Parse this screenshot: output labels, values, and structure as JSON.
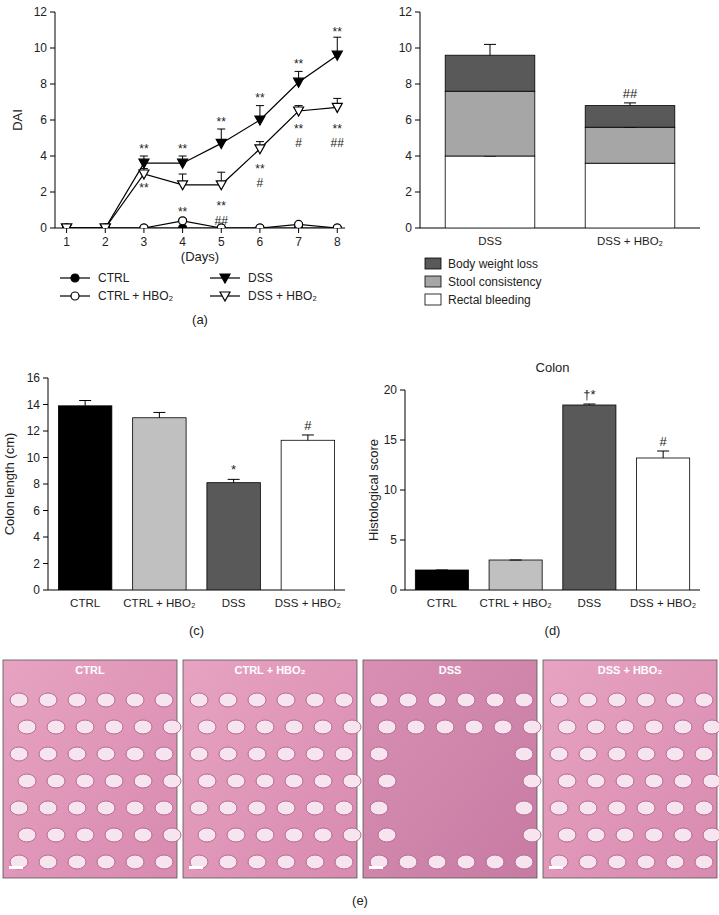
{
  "chart_data": [
    {
      "type": "line",
      "panel_label": "(a)",
      "x_label": "(Days)",
      "y_label": "DAI",
      "x": [
        1,
        2,
        3,
        4,
        5,
        6,
        7,
        8
      ],
      "xlim": [
        0.7,
        8.2
      ],
      "xticks": [
        1,
        2,
        3,
        4,
        5,
        6,
        7,
        8
      ],
      "ylim": [
        0,
        12
      ],
      "yticks": [
        0,
        2,
        4,
        6,
        8,
        10,
        12
      ],
      "legend": "bottom",
      "series": [
        {
          "name": "CTRL",
          "color": "#000000",
          "marker": "circle",
          "values": [
            0,
            0,
            0,
            0,
            0,
            0,
            0,
            0
          ],
          "errors": [
            0,
            0,
            0,
            0,
            0,
            0,
            0,
            0
          ]
        },
        {
          "name": "CTRL + HBO₂",
          "color": "#000000",
          "marker": "circle-open",
          "values": [
            0,
            0,
            0,
            0.4,
            0,
            0,
            0.2,
            0
          ],
          "errors": [
            0,
            0,
            0,
            0.1,
            0,
            0,
            0.1,
            0
          ]
        },
        {
          "name": "DSS",
          "color": "#000000",
          "marker": "triangle-down",
          "values": [
            0,
            0,
            3.6,
            3.6,
            4.7,
            6.0,
            8.1,
            9.6
          ],
          "errors": [
            0,
            0,
            0.4,
            0.4,
            0.8,
            0.8,
            0.6,
            1.0
          ]
        },
        {
          "name": "DSS + HBO₂",
          "color": "#000000",
          "marker": "triangle-down-open",
          "values": [
            0,
            0,
            3.0,
            2.4,
            2.4,
            4.4,
            6.5,
            6.7
          ],
          "errors": [
            0,
            0,
            0.3,
            0.6,
            0.7,
            0.4,
            0.3,
            0.5
          ]
        }
      ],
      "annotations": [
        {
          "x": 3,
          "y": 4.4,
          "text": "**"
        },
        {
          "x": 3,
          "y": 2.2,
          "text": "**"
        },
        {
          "x": 4,
          "y": 4.4,
          "text": "**"
        },
        {
          "x": 4,
          "y": 0.9,
          "text": "**"
        },
        {
          "x": 5,
          "y": 5.9,
          "text": "**"
        },
        {
          "x": 5,
          "y": 1.2,
          "text": "**"
        },
        {
          "x": 5,
          "y": 0.4,
          "text": "##"
        },
        {
          "x": 6,
          "y": 7.2,
          "text": "**"
        },
        {
          "x": 6,
          "y": 3.3,
          "text": "**"
        },
        {
          "x": 6,
          "y": 2.5,
          "text": "#"
        },
        {
          "x": 7,
          "y": 9.1,
          "text": "**"
        },
        {
          "x": 7,
          "y": 5.5,
          "text": "**"
        },
        {
          "x": 7,
          "y": 4.7,
          "text": "#"
        },
        {
          "x": 8,
          "y": 10.9,
          "text": "**"
        },
        {
          "x": 8,
          "y": 5.5,
          "text": "**"
        },
        {
          "x": 8,
          "y": 4.7,
          "text": "##"
        }
      ]
    },
    {
      "type": "bar",
      "stacked": true,
      "legend": "bottom",
      "categories": [
        "DSS",
        "DSS + HBO₂"
      ],
      "ylim": [
        0,
        12
      ],
      "yticks": [
        0,
        2,
        4,
        6,
        8,
        10,
        12
      ],
      "series": [
        {
          "name": "Rectal bleeding",
          "color": "#ffffff",
          "values": [
            4.0,
            3.6
          ],
          "errors": [
            0,
            0.4
          ]
        },
        {
          "name": "Stool consistency",
          "color": "#a6a6a6",
          "values": [
            3.6,
            2.0
          ],
          "errors": [
            0.35,
            0
          ]
        },
        {
          "name": "Body weight loss",
          "color": "#595959",
          "values": [
            2.0,
            1.2
          ],
          "errors": [
            0.6,
            0.15
          ]
        }
      ],
      "annotations": [
        {
          "category": "DSS + HBO₂",
          "text": "##"
        }
      ]
    },
    {
      "type": "bar",
      "panel_label": "(c)",
      "y_label": "Colon length (cm)",
      "categories": [
        "CTRL",
        "CTRL + HBO₂",
        "DSS",
        "DSS + HBO₂"
      ],
      "values": [
        13.9,
        13.0,
        8.1,
        11.3
      ],
      "errors": [
        0.4,
        0.4,
        0.25,
        0.4
      ],
      "colors": [
        "#000000",
        "#c0c0c0",
        "#595959",
        "#ffffff"
      ],
      "ylim": [
        0,
        16
      ],
      "yticks": [
        0,
        2,
        4,
        6,
        8,
        10,
        12,
        14,
        16
      ],
      "annotations": [
        {
          "category": "DSS",
          "text": "*"
        },
        {
          "category": "DSS + HBO₂",
          "text": "#"
        }
      ]
    },
    {
      "type": "bar",
      "panel_label": "(d)",
      "title": "Colon",
      "y_label": "Histological score",
      "categories": [
        "CTRL",
        "CTRL + HBO₂",
        "DSS",
        "DSS + HBO₂"
      ],
      "values": [
        2,
        3,
        18.5,
        13.2
      ],
      "errors": [
        0,
        0,
        0.1,
        0.7
      ],
      "colors": [
        "#000000",
        "#c0c0c0",
        "#595959",
        "#ffffff"
      ],
      "ylim": [
        0,
        20
      ],
      "yticks": [
        0,
        5,
        10,
        15,
        20
      ],
      "annotations": [
        {
          "category": "DSS",
          "text": "†*"
        },
        {
          "category": "DSS + HBO₂",
          "text": "#"
        }
      ]
    }
  ],
  "panel_e": {
    "panel_label": "(e)",
    "images": [
      {
        "label": "CTRL"
      },
      {
        "label": "CTRL + HBO₂"
      },
      {
        "label": "DSS"
      },
      {
        "label": "DSS + HBO₂"
      }
    ]
  }
}
